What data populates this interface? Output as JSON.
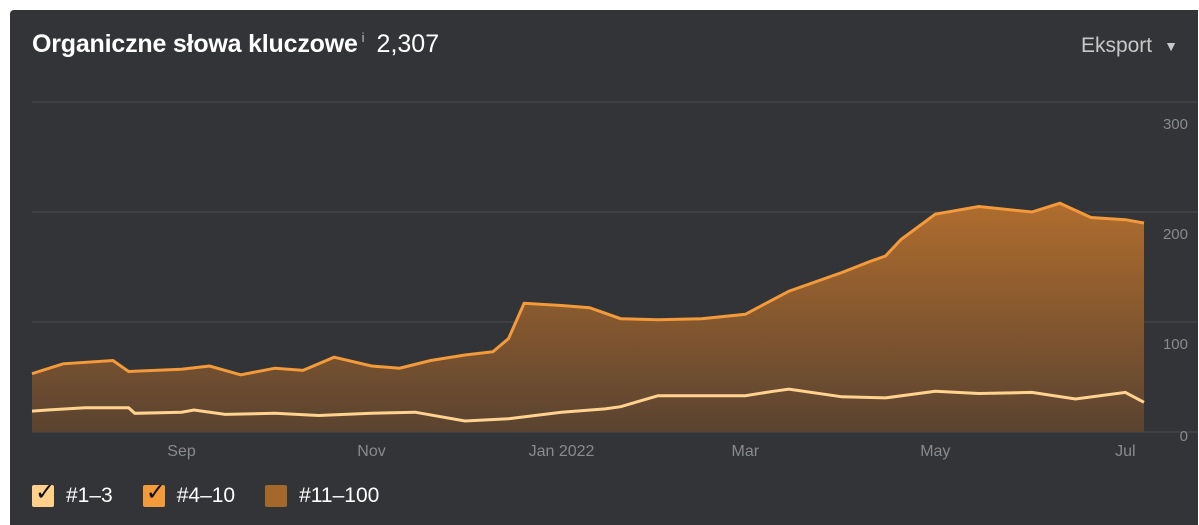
{
  "header": {
    "title": "Organiczne słowa kluczowe",
    "info_glyph": "i",
    "total": "2,307",
    "export_label": "Eksport",
    "export_caret": "▼"
  },
  "colors": {
    "background": "#333437",
    "gridline": "#4a4b4e",
    "axis_text": "#8a8a8d",
    "top_line": "#f39a3a",
    "area_top": "#b06d2e",
    "area_bottom": "#5a4330",
    "line_low": "#ffd38f"
  },
  "legend": [
    {
      "label": "#1–3",
      "color": "#ffd08a",
      "checked": true
    },
    {
      "label": "#4–10",
      "color": "#f39a3a",
      "checked": true
    },
    {
      "label": "#11–100",
      "color": "#a4692a",
      "checked": false
    }
  ],
  "chart_data": {
    "type": "area",
    "title": "Organiczne słowa kluczowe",
    "xlabel": "",
    "ylabel": "",
    "ylim": [
      0,
      300
    ],
    "y_ticks": [
      "0",
      "100",
      "200",
      "300"
    ],
    "x_ticks": [
      {
        "label": "Sep",
        "x": "2021-09-01"
      },
      {
        "label": "Nov",
        "x": "2021-11-01"
      },
      {
        "label": "Jan 2022",
        "x": "2022-01-01"
      },
      {
        "label": "Mar",
        "x": "2022-03-01"
      },
      {
        "label": "May",
        "x": "2022-05-01"
      },
      {
        "label": "Jul",
        "x": "2022-07-01"
      }
    ],
    "x_range": [
      "2021-07-15",
      "2022-07-07"
    ],
    "grid": true,
    "legend_position": "bottom-left",
    "series": [
      {
        "name": "#1–3",
        "type": "line",
        "x": [
          "2021-07-15",
          "2021-07-20",
          "2021-08-01",
          "2021-08-15",
          "2021-08-17",
          "2021-09-01",
          "2021-09-05",
          "2021-09-15",
          "2021-10-01",
          "2021-10-15",
          "2021-11-01",
          "2021-11-15",
          "2021-12-01",
          "2021-12-15",
          "2022-01-01",
          "2022-01-15",
          "2022-01-20",
          "2022-02-01",
          "2022-02-15",
          "2022-03-01",
          "2022-03-10",
          "2022-03-15",
          "2022-04-01",
          "2022-04-15",
          "2022-05-01",
          "2022-05-15",
          "2022-06-01",
          "2022-06-15",
          "2022-07-01",
          "2022-07-07"
        ],
        "values": [
          19,
          20,
          22,
          22,
          17,
          18,
          20,
          16,
          17,
          15,
          17,
          18,
          10,
          12,
          18,
          21,
          23,
          33,
          33,
          33,
          37,
          39,
          32,
          31,
          37,
          35,
          36,
          30,
          36,
          27
        ]
      },
      {
        "name": "#4–10",
        "type": "line",
        "x": [
          "2021-07-15",
          "2021-07-25",
          "2021-08-10",
          "2021-08-15",
          "2021-09-01",
          "2021-09-10",
          "2021-09-20",
          "2021-10-01",
          "2021-10-10",
          "2021-10-20",
          "2021-11-01",
          "2021-11-10",
          "2021-11-20",
          "2021-12-01",
          "2021-12-10",
          "2021-12-15",
          "2021-12-20",
          "2022-01-01",
          "2022-01-10",
          "2022-01-20",
          "2022-02-01",
          "2022-02-15",
          "2022-03-01",
          "2022-03-15",
          "2022-04-01",
          "2022-04-10",
          "2022-04-15",
          "2022-04-20",
          "2022-05-01",
          "2022-05-15",
          "2022-06-01",
          "2022-06-10",
          "2022-06-20",
          "2022-07-01",
          "2022-07-07"
        ],
        "values": [
          53,
          62,
          65,
          55,
          57,
          60,
          52,
          58,
          56,
          68,
          60,
          58,
          65,
          70,
          73,
          85,
          117,
          115,
          113,
          103,
          102,
          103,
          107,
          128,
          145,
          155,
          160,
          175,
          198,
          205,
          200,
          208,
          195,
          193,
          190
        ]
      }
    ]
  }
}
